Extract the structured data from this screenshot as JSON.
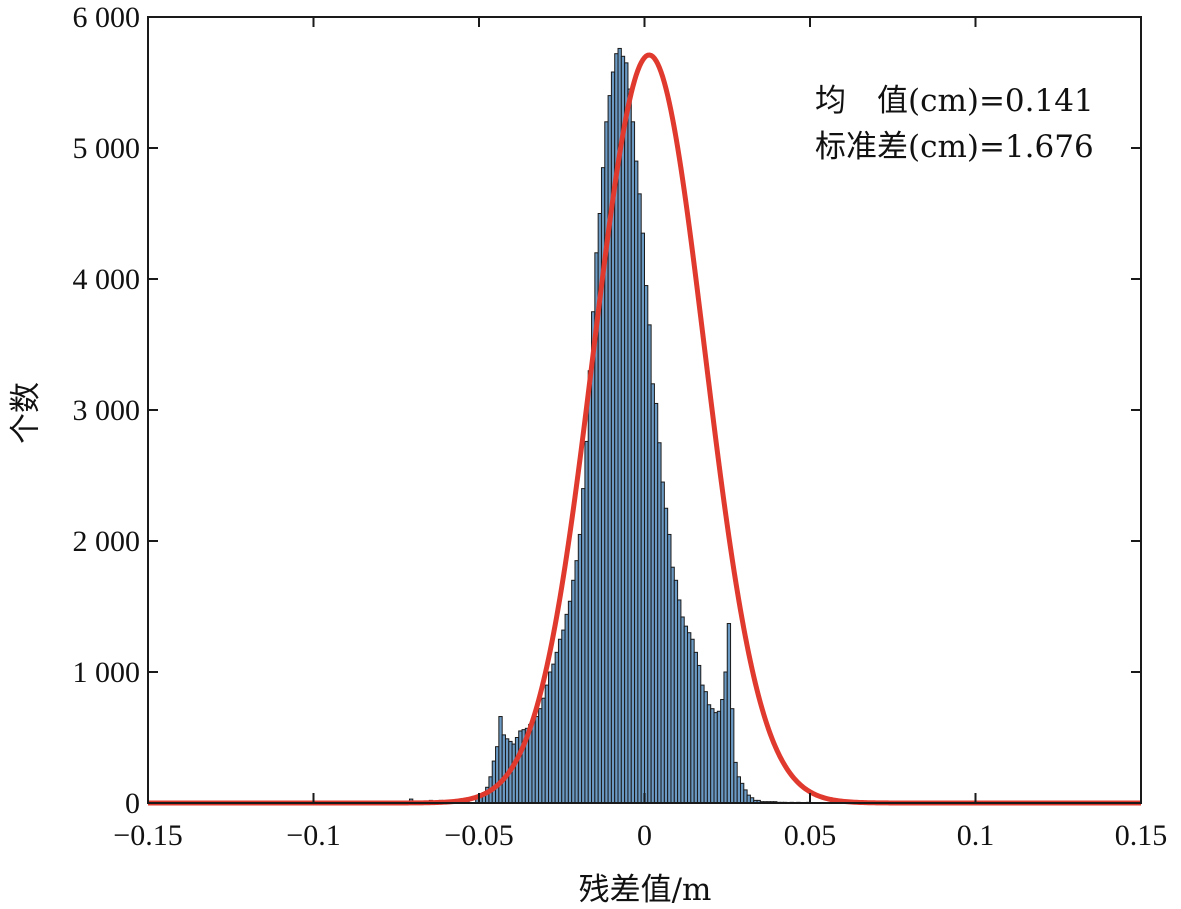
{
  "chart_data": {
    "type": "bar",
    "xlabel": "残差值/m",
    "ylabel": "个数",
    "xlim": [
      -0.15,
      0.15
    ],
    "ylim": [
      0,
      6000
    ],
    "x_ticks": [
      -0.15,
      -0.1,
      -0.05,
      0,
      0.05,
      0.1,
      0.15
    ],
    "x_tick_labels": [
      "−0.15",
      "−0.1",
      "−0.05",
      "0",
      "0.05",
      "0.1",
      "0.15"
    ],
    "y_ticks": [
      0,
      1000,
      2000,
      3000,
      4000,
      5000,
      6000
    ],
    "y_tick_labels": [
      "0",
      "1 000",
      "2 000",
      "3 000",
      "4 000",
      "5 000",
      "6 000"
    ],
    "annotations": [
      "均　值(cm)=0.141",
      "标准差(cm)=1.676"
    ],
    "colors": {
      "bars": "#6b9ac4",
      "bar_edge": "#1a1a1a",
      "fit_curve": "#e03a2f"
    },
    "histogram": {
      "bin_width": 0.001,
      "bin_centers": [
        -0.0705,
        -0.0645,
        -0.0615,
        -0.0565,
        -0.0535,
        -0.0505,
        -0.0495,
        -0.0485,
        -0.0475,
        -0.0465,
        -0.0455,
        -0.0445,
        -0.0435,
        -0.0425,
        -0.0415,
        -0.0405,
        -0.0395,
        -0.0385,
        -0.0375,
        -0.0365,
        -0.0355,
        -0.0345,
        -0.0335,
        -0.0325,
        -0.0315,
        -0.0305,
        -0.0295,
        -0.0285,
        -0.0275,
        -0.0265,
        -0.0255,
        -0.0245,
        -0.0235,
        -0.0225,
        -0.0215,
        -0.0205,
        -0.0195,
        -0.0185,
        -0.0175,
        -0.0165,
        -0.0155,
        -0.0145,
        -0.0135,
        -0.0125,
        -0.0115,
        -0.0105,
        -0.0095,
        -0.0085,
        -0.0075,
        -0.0065,
        -0.0055,
        -0.0045,
        -0.0035,
        -0.0025,
        -0.0015,
        -0.0005,
        0.0005,
        0.0015,
        0.0025,
        0.0035,
        0.0045,
        0.0055,
        0.0065,
        0.0075,
        0.0085,
        0.0095,
        0.0105,
        0.0115,
        0.0125,
        0.0135,
        0.0145,
        0.0155,
        0.0165,
        0.0175,
        0.0185,
        0.0195,
        0.0205,
        0.0215,
        0.0225,
        0.0235,
        0.0245,
        0.0255,
        0.0265,
        0.0275,
        0.0285,
        0.0295,
        0.0305,
        0.0315,
        0.0325,
        0.0335,
        0.0345,
        0.0355,
        0.0365,
        0.0375,
        0.0385,
        0.0395,
        0.0405,
        0.0415,
        0.0425,
        0.0445,
        0.0465,
        0.0495
      ],
      "counts": [
        30,
        20,
        20,
        20,
        30,
        40,
        60,
        80,
        120,
        200,
        320,
        430,
        660,
        520,
        490,
        470,
        450,
        500,
        550,
        560,
        570,
        600,
        620,
        660,
        720,
        800,
        900,
        1000,
        1060,
        1150,
        1250,
        1320,
        1440,
        1540,
        1700,
        1850,
        2050,
        2400,
        2760,
        3300,
        3750,
        4200,
        4500,
        4850,
        5200,
        5400,
        5580,
        5720,
        5760,
        5700,
        5650,
        5450,
        5200,
        4900,
        4650,
        4350,
        3950,
        3650,
        3200,
        3050,
        2750,
        2450,
        2250,
        2050,
        1800,
        1700,
        1550,
        1420,
        1350,
        1300,
        1250,
        1150,
        1050,
        900,
        850,
        750,
        720,
        690,
        700,
        790,
        1000,
        1370,
        720,
        310,
        200,
        150,
        100,
        60,
        40,
        20,
        20,
        10,
        10,
        10,
        10,
        10,
        5,
        5,
        5,
        5,
        5,
        5
      ]
    },
    "fit_curve": {
      "type": "normal",
      "mean_m": 0.00141,
      "std_m": 0.01676,
      "peak": 5710
    }
  }
}
